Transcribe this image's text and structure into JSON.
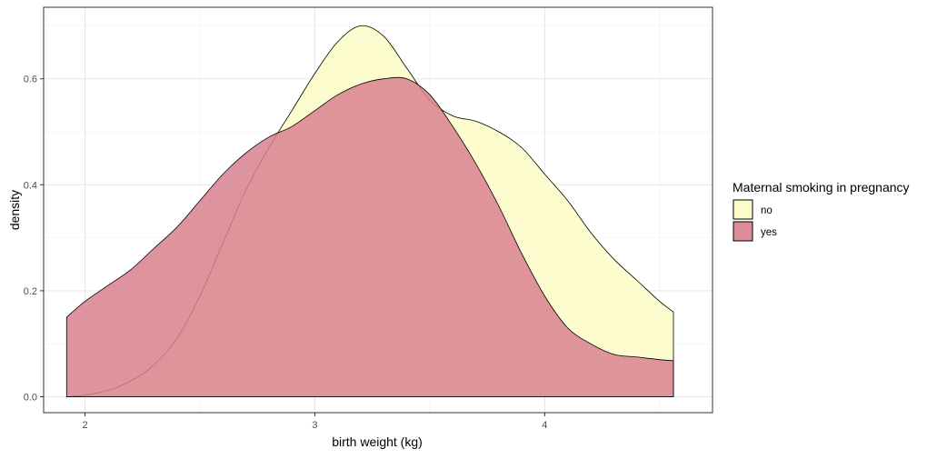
{
  "chart_data": {
    "type": "area",
    "title": "",
    "xlabel": "birth weight (kg)",
    "ylabel": "density",
    "xlim": [
      1.82,
      4.73
    ],
    "ylim": [
      -0.03,
      0.735
    ],
    "x_ticks": [
      2,
      3,
      4
    ],
    "x_tick_labels": [
      "2",
      "3",
      "4"
    ],
    "y_ticks": [
      0.0,
      0.2,
      0.4,
      0.6
    ],
    "y_tick_labels": [
      "0.0",
      "0.2",
      "0.4",
      "0.6"
    ],
    "grid": true,
    "legend": {
      "title": "Maternal smoking in pregnancy",
      "position": "right"
    },
    "series": [
      {
        "name": "no",
        "color": "#fbfbc6",
        "x": [
          1.92,
          2.0,
          2.1,
          2.2,
          2.3,
          2.4,
          2.5,
          2.6,
          2.7,
          2.8,
          2.9,
          3.0,
          3.1,
          3.2,
          3.3,
          3.4,
          3.5,
          3.6,
          3.7,
          3.8,
          3.9,
          4.0,
          4.1,
          4.2,
          4.3,
          4.4,
          4.5,
          4.56
        ],
        "values": [
          0.0,
          0.003,
          0.012,
          0.03,
          0.06,
          0.11,
          0.19,
          0.29,
          0.39,
          0.47,
          0.54,
          0.61,
          0.67,
          0.7,
          0.68,
          0.62,
          0.56,
          0.53,
          0.52,
          0.5,
          0.47,
          0.42,
          0.37,
          0.31,
          0.26,
          0.22,
          0.18,
          0.16
        ]
      },
      {
        "name": "yes",
        "color": "#d8818e",
        "x": [
          1.92,
          2.0,
          2.1,
          2.2,
          2.3,
          2.4,
          2.5,
          2.6,
          2.7,
          2.8,
          2.9,
          3.0,
          3.1,
          3.2,
          3.3,
          3.4,
          3.5,
          3.6,
          3.7,
          3.8,
          3.9,
          4.0,
          4.1,
          4.2,
          4.3,
          4.4,
          4.5,
          4.56
        ],
        "values": [
          0.15,
          0.18,
          0.21,
          0.24,
          0.28,
          0.32,
          0.37,
          0.42,
          0.46,
          0.49,
          0.51,
          0.54,
          0.57,
          0.59,
          0.6,
          0.6,
          0.57,
          0.51,
          0.44,
          0.36,
          0.27,
          0.19,
          0.13,
          0.1,
          0.08,
          0.075,
          0.07,
          0.068
        ]
      }
    ]
  }
}
